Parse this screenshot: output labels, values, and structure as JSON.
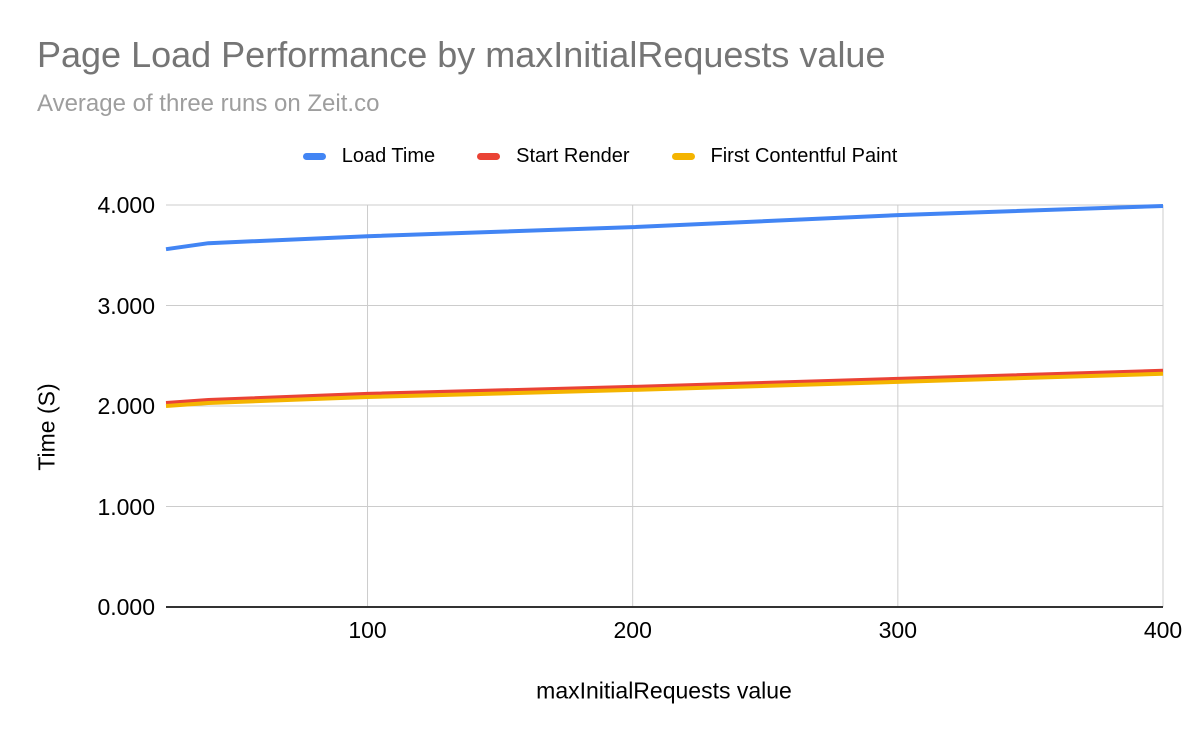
{
  "chart_data": {
    "type": "line",
    "title": "Page Load Performance by maxInitialRequests value",
    "subtitle": "Average of three runs on Zeit.co",
    "xlabel": "maxInitialRequests value",
    "ylabel": "Time (S)",
    "xlim": [
      24,
      400
    ],
    "ylim": [
      0,
      4
    ],
    "x_ticks": [
      "100",
      "200",
      "300",
      "400"
    ],
    "y_ticks": [
      "0.000",
      "1.000",
      "2.000",
      "3.000",
      "4.000"
    ],
    "grid": true,
    "legend_position": "top",
    "x": [
      24,
      40,
      100,
      200,
      300,
      400
    ],
    "series": [
      {
        "name": "Load Time",
        "color": "#4285F4",
        "values": [
          3.56,
          3.62,
          3.69,
          3.78,
          3.9,
          3.99
        ]
      },
      {
        "name": "Start Render",
        "color": "#EA4335",
        "values": [
          2.03,
          2.06,
          2.12,
          2.19,
          2.27,
          2.35
        ]
      },
      {
        "name": "First Contentful Paint",
        "color": "#F4B400",
        "values": [
          2.0,
          2.03,
          2.09,
          2.16,
          2.24,
          2.32
        ]
      }
    ]
  },
  "styles": {
    "title_color": "#757575",
    "subtitle_color": "#9E9E9E",
    "grid_color": "#CCCCCC",
    "axis_line_color": "#333333",
    "tick_label_color": "#000000"
  }
}
